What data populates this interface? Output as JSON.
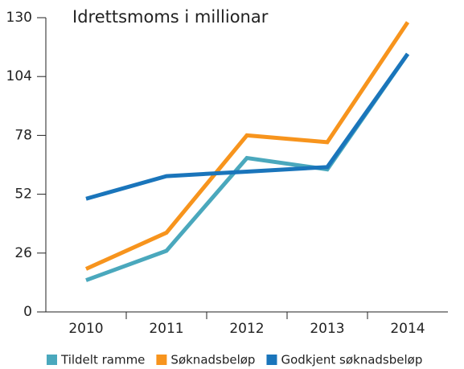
{
  "chart_data": {
    "type": "line",
    "title": "Idrettsmoms i millionar",
    "categories": [
      "2010",
      "2011",
      "2012",
      "2013",
      "2014"
    ],
    "series": [
      {
        "name": "Tildelt ramme",
        "color": "#4aa8bd",
        "values": [
          14,
          27,
          68,
          63,
          114
        ]
      },
      {
        "name": "Søknadsbeløp",
        "color": "#f7941d",
        "values": [
          19,
          35,
          78,
          75,
          128
        ]
      },
      {
        "name": "Godkjent søknadsbeløp",
        "color": "#1a75bb",
        "values": [
          50,
          60,
          62,
          64,
          114
        ]
      }
    ],
    "ylim": [
      0,
      130
    ],
    "yticks": [
      0,
      26,
      52,
      78,
      104,
      130
    ],
    "grid": false,
    "legend": "bottom"
  }
}
